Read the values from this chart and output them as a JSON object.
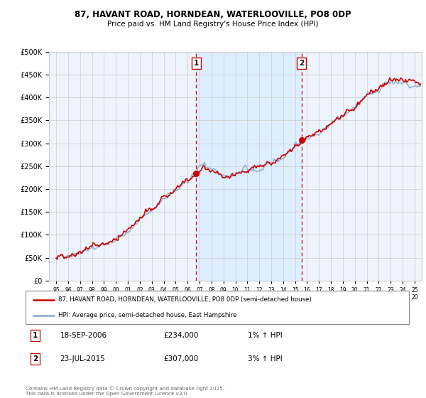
{
  "title1": "87, HAVANT ROAD, HORNDEAN, WATERLOOVILLE, PO8 0DP",
  "title2": "Price paid vs. HM Land Registry's House Price Index (HPI)",
  "legend_label1": "87, HAVANT ROAD, HORNDEAN, WATERLOOVILLE, PO8 0DP (semi-detached house)",
  "legend_label2": "HPI: Average price, semi-detached house, East Hampshire",
  "marker1_date_label": "18-SEP-2006",
  "marker1_value": 234000,
  "marker1_hpi": "1% ↑ HPI",
  "marker2_date_label": "23-JUL-2015",
  "marker2_value": 307000,
  "marker2_hpi": "3% ↑ HPI",
  "footer": "Contains HM Land Registry data © Crown copyright and database right 2025.\nThis data is licensed under the Open Government Licence v3.0.",
  "line_color": "#cc0000",
  "hpi_color": "#88aacc",
  "marker_color": "#cc0000",
  "vline_color": "#cc0000",
  "shade_color": "#ddeeff",
  "bg_color": "#eef4fb",
  "grid_color": "#cccccc",
  "ylim": [
    0,
    500000
  ],
  "yticks": [
    0,
    50000,
    100000,
    150000,
    200000,
    250000,
    300000,
    350000,
    400000,
    450000,
    500000
  ],
  "year_start": 1995,
  "year_end": 2025,
  "marker1_year": 2006.72,
  "marker2_year": 2015.55
}
